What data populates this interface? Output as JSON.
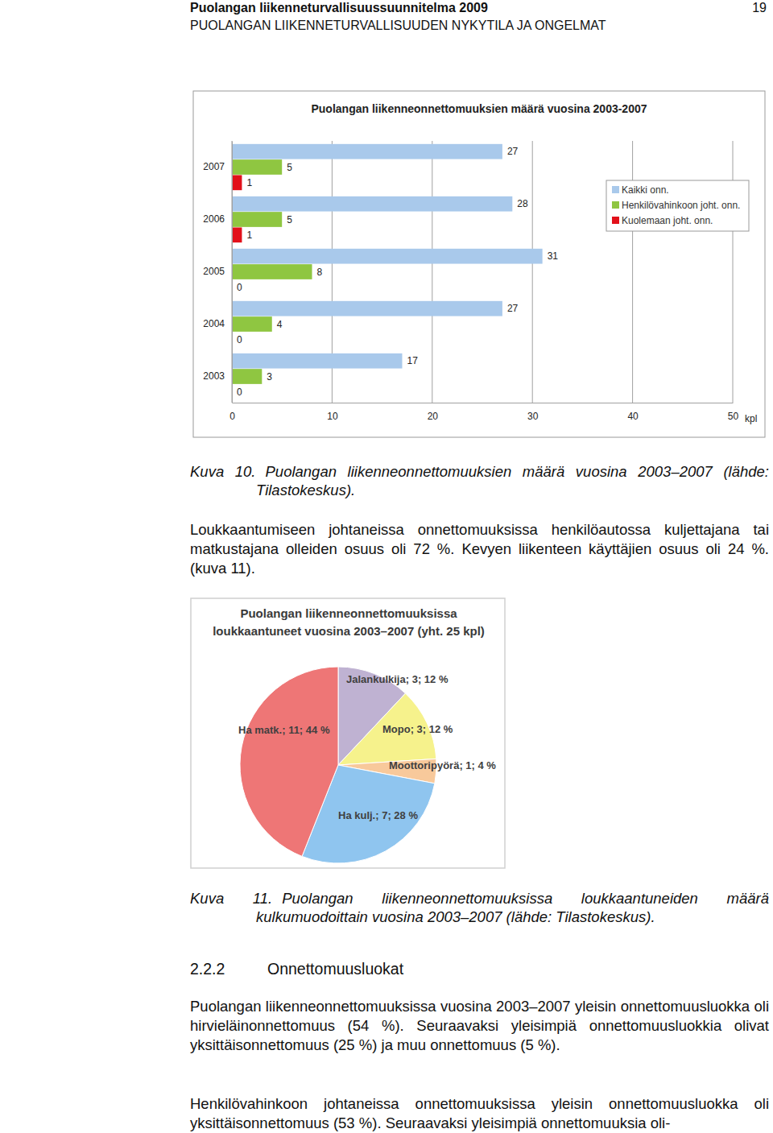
{
  "header": {
    "title": "Puolangan liikenneturvallisuussuunnitelma 2009",
    "page_number": 19,
    "section": "PUOLANGAN LIIKENNETURVALLISUUDEN NYKYTILA JA ONGELMAT"
  },
  "chart_data": [
    {
      "type": "bar",
      "title": "Puolangan liikenneonnettomuuksien määrä vuosina 2003-2007",
      "orientation": "horizontal",
      "categories": [
        "2003",
        "2004",
        "2005",
        "2006",
        "2007"
      ],
      "series": [
        {
          "name": "Kaikki onn.",
          "color": "#a9c9eb",
          "values": [
            17,
            27,
            31,
            28,
            27
          ]
        },
        {
          "name": "Henkilövahinkoon joht. onn.",
          "color": "#8fc641",
          "values": [
            3,
            4,
            8,
            5,
            5
          ]
        },
        {
          "name": "Kuolemaan joht. onn.",
          "color": "#e2101a",
          "values": [
            0,
            0,
            0,
            1,
            1
          ]
        }
      ],
      "xlim": [
        0,
        50
      ],
      "xticks": [
        0,
        10,
        20,
        30,
        40,
        50
      ],
      "xlabel": "kpl",
      "grid": true,
      "data_labels": true,
      "legend": "upper right"
    },
    {
      "type": "pie",
      "title": [
        "Puolangan liikenneonnettomuuksissa",
        "loukkaantuneet vuosina 2003–2007 (yht. 25 kpl)"
      ],
      "values": [
        3,
        3,
        1,
        7,
        11
      ],
      "value_labels": [
        "Jalankulkija; 3; 12 %",
        "Mopo; 3; 12 %",
        "Moottoripyörä; 1; 4 %",
        "Ha kulj.; 7; 28 %",
        "Ha matk.; 11; 44 %"
      ],
      "colors": [
        "#bfb2d2",
        "#f6f28c",
        "#f8c99b",
        "#8fc5ef",
        "#ee7676"
      ],
      "data_labels": true
    }
  ],
  "captions": [
    {
      "label": "Kuva 10.",
      "text": "Puolangan liikenneonnettomuuksien määrä vuosina 2003–2007 (lähde: Tilastokeskus)."
    },
    {
      "label": "Kuva 11.",
      "text": "Puolangan liikenneonnettomuuksissa loukkaantuneiden määrä kulkumuodoittain vuosina 2003–2007 (lähde: Tilastokeskus)."
    }
  ],
  "section_heading": {
    "number": "2.2.2",
    "title": "Onnettomuusluokat"
  },
  "paragraphs": [
    "Loukkaantumiseen johtaneissa onnettomuuksissa henkilöautossa kuljettajana tai matkustajana olleiden osuus oli 72 %. Kevyen liikenteen käyttäjien osuus oli 24 %. (kuva 11).",
    "Puolangan liikenneonnettomuuksissa vuosina 2003–2007 yleisin onnettomuusluokka oli hirvieläinonnettomuus (54 %). Seuraavaksi yleisimpiä onnettomuusluokkia olivat yksittäisonnettomuus (25 %) ja muu onnettomuus (5 %).",
    "Henkilövahinkoon johtaneissa onnettomuuksissa yleisin onnettomuusluokka oli yksittäisonnettomuus (53 %). Seuraavaksi yleisimpiä onnettomuuksia oli-"
  ]
}
